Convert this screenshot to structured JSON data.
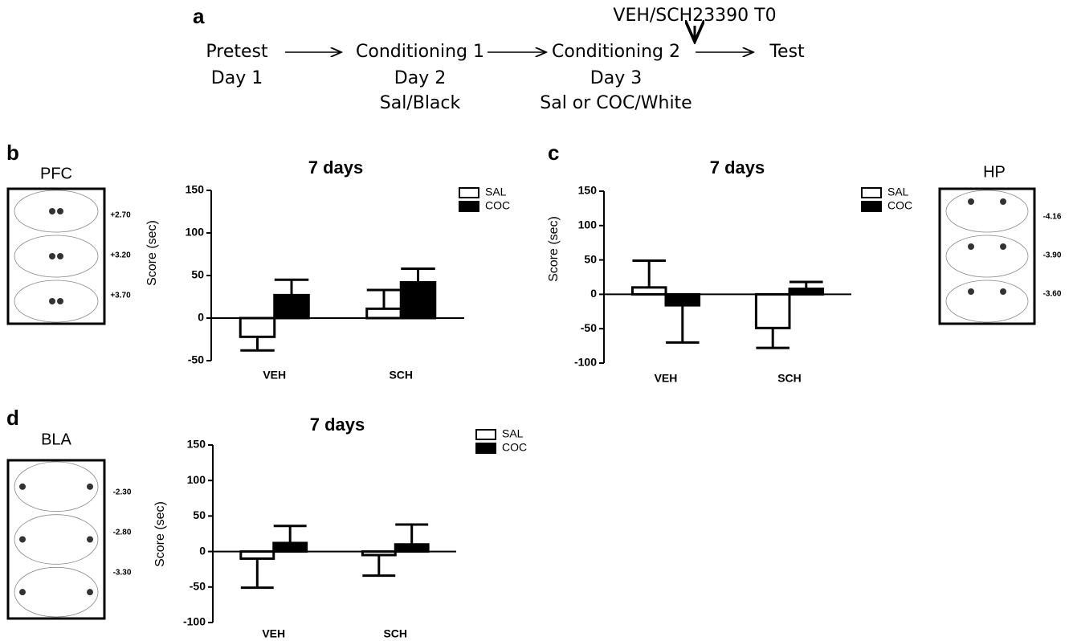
{
  "timeline": {
    "label": "a",
    "treatment": "VEH/SCH23390 T0",
    "steps": [
      {
        "name": "Pretest",
        "lines": [
          "Day 1"
        ]
      },
      {
        "name": "Conditioning 1",
        "lines": [
          "Day 2",
          "Sal/Black"
        ]
      },
      {
        "name": "Conditioning 2",
        "lines": [
          "Day 3",
          "Sal or COC/White"
        ]
      },
      {
        "name": "Test",
        "lines": []
      }
    ]
  },
  "panel_labels": [
    "b",
    "c",
    "d"
  ],
  "brain_images": [
    {
      "region": "PFC",
      "coordinates": [
        "+2.70",
        "+3.20",
        "+3.70"
      ]
    },
    {
      "region": "HP",
      "coordinates": [
        "-4.16",
        "-3.90",
        "-3.60"
      ]
    },
    {
      "region": "BLA",
      "coordinates": [
        "-2.30",
        "-2.80",
        "-3.30"
      ]
    }
  ],
  "chart_data": [
    {
      "type": "bar",
      "title": "7 days",
      "y_label": "Score (sec)",
      "categories": [
        "VEH",
        "SCH"
      ],
      "series": [
        {
          "name": "SAL",
          "color": "#ffffff",
          "values": [
            -22,
            11
          ],
          "errors": [
            16,
            22
          ]
        },
        {
          "name": "COC",
          "color": "#000000",
          "values": [
            27,
            42
          ],
          "errors": [
            18,
            16
          ]
        }
      ],
      "ylim": [
        -50,
        150
      ],
      "yticks": [
        -50,
        0,
        50,
        100,
        150
      ],
      "legend": "upper right"
    },
    {
      "type": "bar",
      "title": "7 days",
      "y_label": "Score (sec)",
      "categories": [
        "VEH",
        "SCH"
      ],
      "series": [
        {
          "name": "SAL",
          "color": "#ffffff",
          "values": [
            10,
            -49
          ],
          "errors": [
            39,
            29
          ]
        },
        {
          "name": "COC",
          "color": "#000000",
          "values": [
            -16,
            8
          ],
          "errors": [
            54,
            10
          ]
        }
      ],
      "ylim": [
        -100,
        150
      ],
      "yticks": [
        -100,
        -50,
        0,
        50,
        100,
        150
      ],
      "legend": "upper right"
    },
    {
      "type": "bar",
      "title": "7 days",
      "y_label": "Score (sec)",
      "categories": [
        "VEH",
        "SCH"
      ],
      "series": [
        {
          "name": "SAL",
          "color": "#ffffff",
          "values": [
            -10,
            -5
          ],
          "errors": [
            41,
            29
          ]
        },
        {
          "name": "COC",
          "color": "#000000",
          "values": [
            12,
            10
          ],
          "errors": [
            24,
            28
          ]
        }
      ],
      "ylim": [
        -100,
        150
      ],
      "yticks": [
        -100,
        -50,
        0,
        50,
        100,
        150
      ],
      "legend": "upper right"
    }
  ]
}
